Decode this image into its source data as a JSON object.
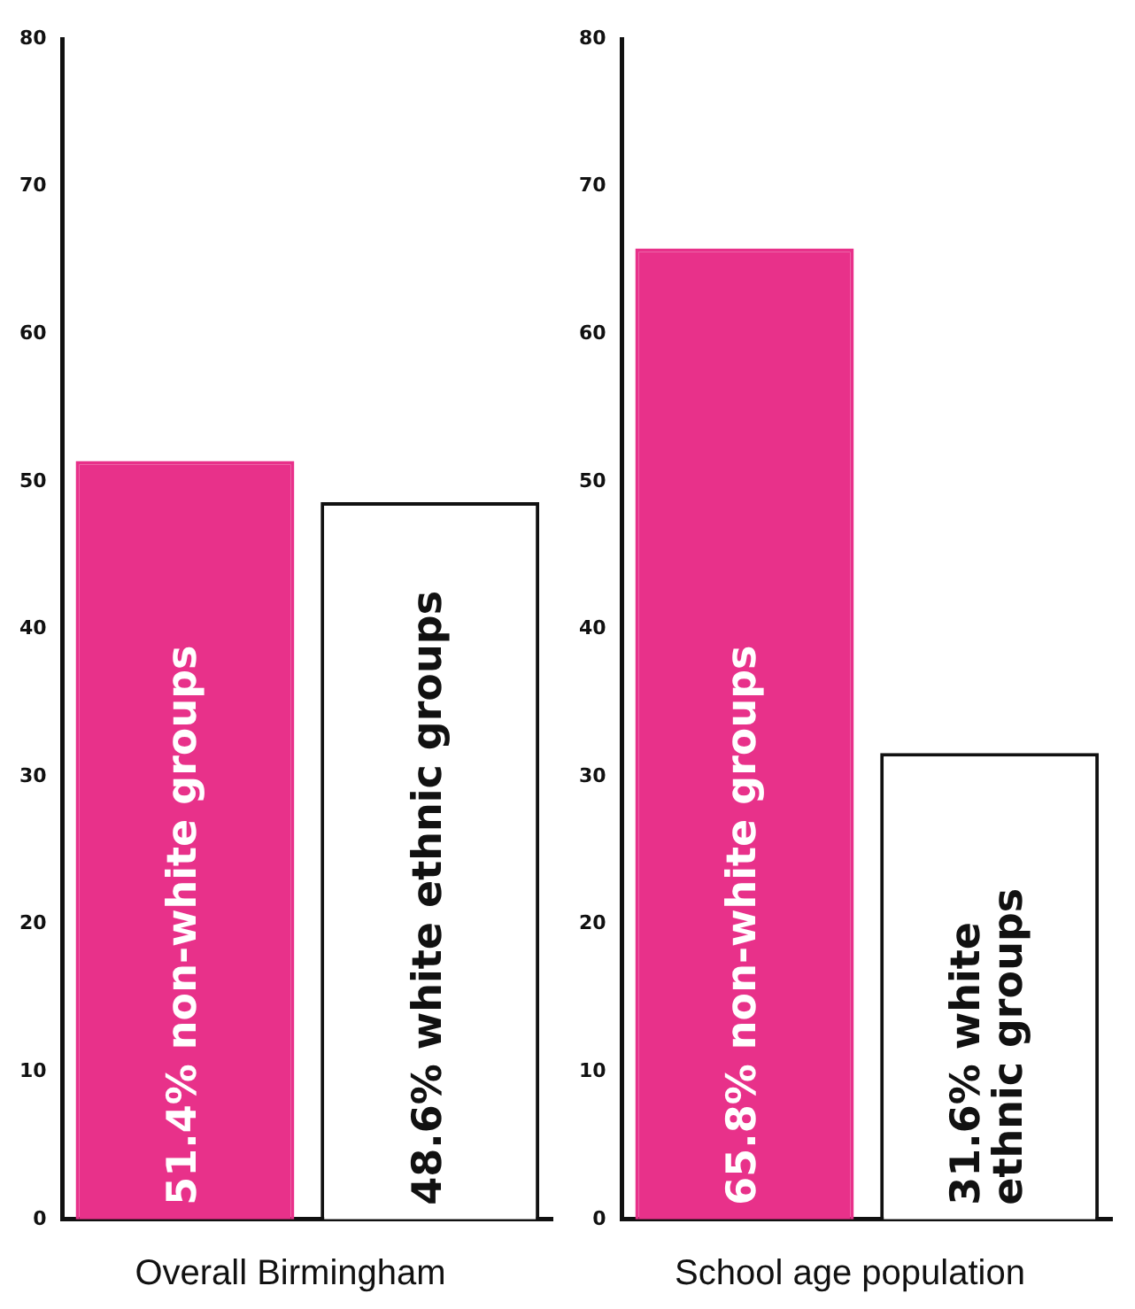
{
  "chart_data": [
    {
      "type": "bar",
      "xlabel": "Overall Birmingham",
      "categories": [
        null,
        null
      ],
      "values": [
        51.4,
        48.6
      ],
      "colors": [
        "#e8318a",
        "#ffffff"
      ],
      "value_labels": [
        "51.4% non-white groups",
        "48.6% white ethnic groups"
      ],
      "ylim": [
        0,
        80
      ],
      "yticks": [
        0,
        10,
        20,
        30,
        40,
        50,
        60,
        70,
        80
      ],
      "tick_labels": "y",
      "grid": false,
      "legend": false
    },
    {
      "type": "bar",
      "xlabel": "School age population",
      "categories": [
        null,
        null
      ],
      "values": [
        65.8,
        31.6
      ],
      "colors": [
        "#e8318a",
        "#ffffff"
      ],
      "value_labels": [
        "65.8% non-white groups",
        "31.6% white\nethnic groups"
      ],
      "ylim": [
        0,
        80
      ],
      "yticks": [
        0,
        10,
        20,
        30,
        40,
        50,
        60,
        70,
        80
      ],
      "tick_labels": "y",
      "grid": false,
      "legend": false
    }
  ]
}
